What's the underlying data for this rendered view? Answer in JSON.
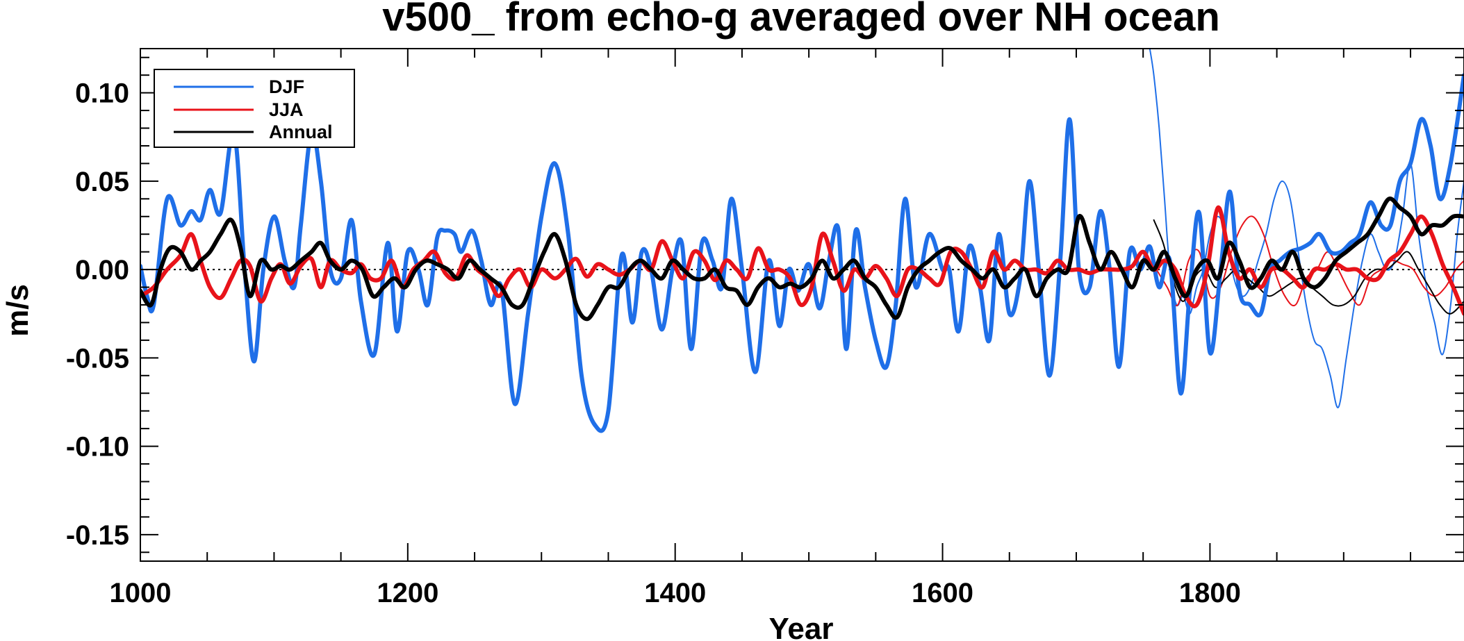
{
  "chart_data": {
    "type": "line",
    "title": "v500_ from echo-g averaged over NH ocean",
    "xlabel": "Year",
    "ylabel": "m/s",
    "xlim": [
      1000,
      1990
    ],
    "ylim": [
      -0.165,
      0.125
    ],
    "xticks": [
      1000,
      1200,
      1400,
      1600,
      1800
    ],
    "xtick_labels": [
      "1000",
      "1200",
      "1400",
      "1600",
      "1800"
    ],
    "yticks": [
      0.1,
      0.05,
      0.0,
      -0.05,
      -0.1,
      -0.15
    ],
    "ytick_labels": [
      "0.10",
      "0.05",
      "0.00",
      "-0.05",
      "-0.10",
      "-0.15"
    ],
    "zero_line": "dotted",
    "legend_position": "top-left",
    "legend": [
      "DJF",
      "JJA",
      "Annual"
    ],
    "colors": {
      "DJF": "#1f6fe8",
      "JJA": "#e8131a",
      "Annual": "#000000"
    },
    "series": [
      {
        "name": "DJF",
        "style": "thick",
        "x": [
          1000,
          1005,
          1010,
          1020,
          1030,
          1038,
          1045,
          1052,
          1060,
          1070,
          1078,
          1085,
          1092,
          1100,
          1108,
          1115,
          1120,
          1128,
          1135,
          1142,
          1150,
          1158,
          1165,
          1175,
          1185,
          1192,
          1200,
          1208,
          1215,
          1222,
          1228,
          1235,
          1240,
          1248,
          1255,
          1262,
          1270,
          1280,
          1290,
          1300,
          1310,
          1320,
          1330,
          1340,
          1350,
          1360,
          1368,
          1375,
          1382,
          1390,
          1398,
          1405,
          1412,
          1420,
          1428,
          1435,
          1442,
          1450,
          1460,
          1470,
          1478,
          1485,
          1492,
          1500,
          1508,
          1515,
          1522,
          1528,
          1535,
          1542,
          1550,
          1558,
          1565,
          1572,
          1580,
          1590,
          1600,
          1605,
          1612,
          1620,
          1628,
          1635,
          1642,
          1650,
          1658,
          1665,
          1672,
          1680,
          1688,
          1695,
          1702,
          1710,
          1718,
          1725,
          1732,
          1740,
          1748,
          1755,
          1762,
          1770,
          1778,
          1785,
          1792,
          1800,
          1808,
          1815,
          1822,
          1830,
          1838,
          1845,
          1852,
          1860,
          1868,
          1875,
          1882,
          1890,
          1898,
          1905,
          1912,
          1920,
          1928,
          1935,
          1942,
          1950,
          1958,
          1965,
          1972,
          1980,
          1990
        ],
        "values": [
          0.002,
          -0.015,
          -0.02,
          0.04,
          0.025,
          0.033,
          0.028,
          0.045,
          0.032,
          0.078,
          0.0,
          -0.052,
          0.0,
          0.03,
          0.005,
          -0.01,
          0.025,
          0.078,
          0.05,
          0.0,
          -0.005,
          0.028,
          -0.018,
          -0.048,
          0.015,
          -0.035,
          0.01,
          0.0,
          -0.02,
          0.018,
          0.022,
          0.02,
          0.01,
          0.022,
          0.005,
          -0.02,
          -0.01,
          -0.076,
          -0.025,
          0.03,
          0.06,
          0.02,
          -0.06,
          -0.088,
          -0.08,
          0.008,
          -0.03,
          0.01,
          0.0,
          -0.034,
          0.0,
          0.015,
          -0.045,
          0.015,
          0.005,
          -0.01,
          0.04,
          0.0,
          -0.058,
          0.005,
          -0.032,
          0.0,
          -0.012,
          0.003,
          -0.022,
          0.005,
          0.023,
          -0.045,
          0.022,
          -0.01,
          -0.04,
          -0.055,
          -0.02,
          0.04,
          -0.01,
          0.02,
          0.0,
          0.0,
          -0.035,
          0.013,
          -0.01,
          -0.04,
          0.02,
          -0.025,
          -0.005,
          0.05,
          0.0,
          -0.06,
          0.005,
          0.085,
          0.0,
          -0.01,
          0.033,
          0.0,
          -0.055,
          0.01,
          0.0,
          0.013,
          -0.01,
          0.005,
          -0.07,
          -0.012,
          0.032,
          -0.047,
          0.0,
          0.044,
          -0.012,
          -0.02,
          -0.025,
          0.0,
          0.005,
          0.01,
          0.012,
          0.015,
          0.02,
          0.01,
          0.01,
          0.015,
          0.02,
          0.038,
          0.025,
          0.025,
          0.05,
          0.06,
          0.085,
          0.07,
          0.04,
          0.06,
          0.11
        ]
      },
      {
        "name": "JJA",
        "style": "thick",
        "x": [
          1000,
          1010,
          1020,
          1030,
          1038,
          1045,
          1052,
          1060,
          1068,
          1075,
          1082,
          1090,
          1098,
          1105,
          1112,
          1120,
          1128,
          1135,
          1142,
          1150,
          1158,
          1165,
          1172,
          1180,
          1188,
          1196,
          1204,
          1212,
          1220,
          1228,
          1236,
          1244,
          1252,
          1260,
          1268,
          1276,
          1284,
          1292,
          1300,
          1310,
          1318,
          1326,
          1334,
          1342,
          1350,
          1358,
          1366,
          1374,
          1382,
          1390,
          1398,
          1406,
          1414,
          1422,
          1430,
          1438,
          1446,
          1454,
          1462,
          1470,
          1478,
          1486,
          1494,
          1502,
          1510,
          1518,
          1526,
          1534,
          1542,
          1550,
          1558,
          1566,
          1574,
          1582,
          1590,
          1598,
          1606,
          1614,
          1622,
          1630,
          1638,
          1646,
          1654,
          1662,
          1670,
          1678,
          1686,
          1694,
          1702,
          1710,
          1718,
          1726,
          1734,
          1742,
          1750,
          1758,
          1766,
          1774,
          1782,
          1790,
          1798,
          1806,
          1814,
          1822,
          1830,
          1838,
          1846,
          1854,
          1862,
          1870,
          1878,
          1886,
          1894,
          1902,
          1910,
          1918,
          1926,
          1934,
          1942,
          1950,
          1958,
          1966,
          1974,
          1982,
          1990
        ],
        "values": [
          -0.015,
          -0.01,
          0.0,
          0.008,
          0.02,
          0.005,
          -0.01,
          -0.016,
          -0.005,
          0.005,
          0.002,
          -0.018,
          -0.005,
          0.003,
          -0.008,
          0.002,
          0.006,
          -0.01,
          0.005,
          0.0,
          -0.002,
          0.003,
          -0.005,
          -0.005,
          0.005,
          -0.01,
          0.0,
          0.005,
          0.01,
          -0.002,
          -0.005,
          0.008,
          0.0,
          -0.005,
          -0.015,
          -0.005,
          0.0,
          -0.01,
          0.0,
          -0.005,
          0.0,
          0.006,
          -0.004,
          0.003,
          0.0,
          -0.003,
          0.0,
          0.005,
          0.0,
          0.016,
          0.005,
          -0.005,
          0.01,
          0.005,
          -0.006,
          0.005,
          0.0,
          -0.005,
          0.012,
          0.0,
          0.0,
          -0.005,
          -0.02,
          -0.01,
          0.02,
          0.005,
          -0.012,
          0.0,
          -0.005,
          0.002,
          -0.005,
          -0.015,
          0.0,
          0.0,
          -0.005,
          -0.008,
          0.01,
          0.01,
          0.0,
          -0.01,
          0.01,
          0.0,
          0.005,
          0.0,
          0.0,
          -0.002,
          0.005,
          0.0,
          0.0,
          -0.002,
          0.0,
          0.0,
          0.0,
          0.002,
          0.01,
          0.0,
          0.005,
          0.0,
          -0.015,
          -0.02,
          0.0,
          0.035,
          0.01,
          -0.005,
          0.0,
          -0.01,
          0.0,
          0.0,
          -0.005,
          -0.01,
          0.0,
          0.0,
          0.003,
          0.0,
          0.0,
          -0.005,
          -0.005,
          0.005,
          0.01,
          0.02,
          0.03,
          0.02,
          0.003,
          -0.01,
          -0.025
        ]
      },
      {
        "name": "Annual",
        "style": "thick",
        "x": [
          1000,
          1008,
          1015,
          1022,
          1030,
          1038,
          1045,
          1052,
          1060,
          1068,
          1075,
          1082,
          1090,
          1098,
          1105,
          1112,
          1120,
          1128,
          1135,
          1142,
          1150,
          1158,
          1166,
          1174,
          1182,
          1190,
          1198,
          1206,
          1214,
          1222,
          1230,
          1238,
          1246,
          1254,
          1262,
          1270,
          1278,
          1286,
          1294,
          1302,
          1310,
          1318,
          1326,
          1334,
          1342,
          1350,
          1358,
          1366,
          1374,
          1382,
          1390,
          1398,
          1406,
          1414,
          1422,
          1430,
          1438,
          1446,
          1454,
          1462,
          1470,
          1478,
          1486,
          1494,
          1502,
          1510,
          1518,
          1526,
          1534,
          1542,
          1550,
          1558,
          1566,
          1574,
          1582,
          1590,
          1598,
          1606,
          1614,
          1622,
          1630,
          1638,
          1646,
          1654,
          1662,
          1670,
          1678,
          1686,
          1694,
          1702,
          1710,
          1718,
          1726,
          1734,
          1742,
          1750,
          1758,
          1766,
          1774,
          1782,
          1790,
          1798,
          1806,
          1814,
          1822,
          1830,
          1838,
          1846,
          1854,
          1862,
          1870,
          1878,
          1886,
          1894,
          1902,
          1910,
          1918,
          1926,
          1934,
          1942,
          1950,
          1958,
          1966,
          1974,
          1982,
          1990
        ],
        "values": [
          -0.012,
          -0.02,
          0.0,
          0.012,
          0.01,
          0.0,
          0.005,
          0.01,
          0.02,
          0.028,
          0.012,
          -0.015,
          0.005,
          0.0,
          0.002,
          0.0,
          0.005,
          0.01,
          0.015,
          0.005,
          0.0,
          0.005,
          0.0,
          -0.015,
          -0.01,
          -0.005,
          -0.01,
          0.0,
          0.005,
          0.003,
          0.0,
          -0.005,
          0.005,
          0.0,
          -0.005,
          -0.01,
          -0.02,
          -0.02,
          -0.005,
          0.01,
          0.02,
          0.005,
          -0.02,
          -0.028,
          -0.02,
          -0.01,
          -0.01,
          0.0,
          0.005,
          0.0,
          -0.005,
          0.005,
          0.0,
          -0.005,
          -0.005,
          0.0,
          -0.01,
          -0.012,
          -0.02,
          -0.01,
          -0.005,
          -0.01,
          -0.008,
          -0.01,
          -0.005,
          0.005,
          -0.005,
          0.0,
          0.005,
          -0.005,
          -0.01,
          -0.02,
          -0.027,
          -0.01,
          0.0,
          0.005,
          0.01,
          0.012,
          0.005,
          0.0,
          -0.005,
          0.0,
          -0.01,
          -0.005,
          0.0,
          -0.015,
          -0.005,
          0.0,
          0.0,
          0.03,
          0.015,
          0.0,
          0.01,
          0.0,
          -0.01,
          0.005,
          0.0,
          0.01,
          -0.005,
          -0.015,
          0.0,
          0.005,
          -0.005,
          0.015,
          0.005,
          -0.01,
          -0.005,
          0.005,
          0.0,
          0.01,
          -0.005,
          -0.01,
          -0.005,
          0.005,
          0.01,
          0.015,
          0.02,
          0.03,
          0.04,
          0.035,
          0.03,
          0.02,
          0.025,
          0.025,
          0.03,
          0.03
        ]
      },
      {
        "name": "DJF (late, thin)",
        "style": "thin",
        "x": [
          1755,
          1758,
          1762,
          1766,
          1770,
          1775,
          1780,
          1785,
          1790,
          1795,
          1800,
          1806,
          1812,
          1818,
          1824,
          1830,
          1836,
          1842,
          1848,
          1854,
          1860,
          1866,
          1872,
          1878,
          1884,
          1890,
          1896,
          1902,
          1908,
          1914,
          1920,
          1926,
          1932,
          1938,
          1944,
          1950,
          1956,
          1962,
          1968,
          1974,
          1980,
          1985,
          1990
        ],
        "values": [
          0.125,
          0.11,
          0.08,
          0.04,
          0.0,
          -0.02,
          -0.015,
          -0.025,
          -0.01,
          0.0,
          0.02,
          0.03,
          0.02,
          -0.005,
          -0.015,
          -0.01,
          0.005,
          0.02,
          0.04,
          0.05,
          0.04,
          0.01,
          -0.02,
          -0.04,
          -0.045,
          -0.06,
          -0.078,
          -0.05,
          -0.02,
          0.005,
          0.02,
          0.01,
          0.0,
          0.005,
          0.03,
          0.06,
          0.02,
          -0.01,
          -0.03,
          -0.048,
          -0.02,
          0.02,
          0.05
        ]
      },
      {
        "name": "JJA (late, thin)",
        "style": "thin",
        "x": [
          1760,
          1768,
          1776,
          1784,
          1792,
          1800,
          1808,
          1816,
          1824,
          1832,
          1840,
          1848,
          1856,
          1864,
          1872,
          1880,
          1888,
          1896,
          1904,
          1912,
          1920,
          1928,
          1936,
          1944,
          1952,
          1960,
          1968,
          1976,
          1984,
          1990
        ],
        "values": [
          0.0,
          -0.01,
          -0.02,
          0.005,
          0.01,
          -0.015,
          -0.01,
          0.01,
          0.025,
          0.03,
          0.02,
          0.0,
          -0.015,
          -0.02,
          -0.005,
          0.0,
          0.01,
          0.0,
          -0.012,
          -0.02,
          -0.005,
          0.0,
          0.005,
          0.003,
          0.0,
          -0.01,
          -0.015,
          -0.01,
          0.0,
          0.005
        ]
      },
      {
        "name": "Annual (late, thin)",
        "style": "thin",
        "x": [
          1758,
          1765,
          1772,
          1780,
          1788,
          1796,
          1804,
          1812,
          1820,
          1828,
          1836,
          1844,
          1852,
          1860,
          1868,
          1876,
          1884,
          1892,
          1900,
          1908,
          1916,
          1924,
          1932,
          1940,
          1948,
          1956,
          1964,
          1972,
          1980,
          1990
        ],
        "values": [
          0.028,
          0.015,
          -0.005,
          -0.018,
          -0.005,
          0.0,
          -0.01,
          -0.005,
          0.0,
          -0.005,
          -0.01,
          -0.015,
          -0.012,
          -0.008,
          -0.005,
          -0.01,
          -0.015,
          -0.02,
          -0.02,
          -0.015,
          -0.005,
          0.0,
          0.0,
          0.005,
          0.01,
          0.0,
          -0.01,
          -0.02,
          -0.025,
          -0.018
        ]
      }
    ]
  }
}
